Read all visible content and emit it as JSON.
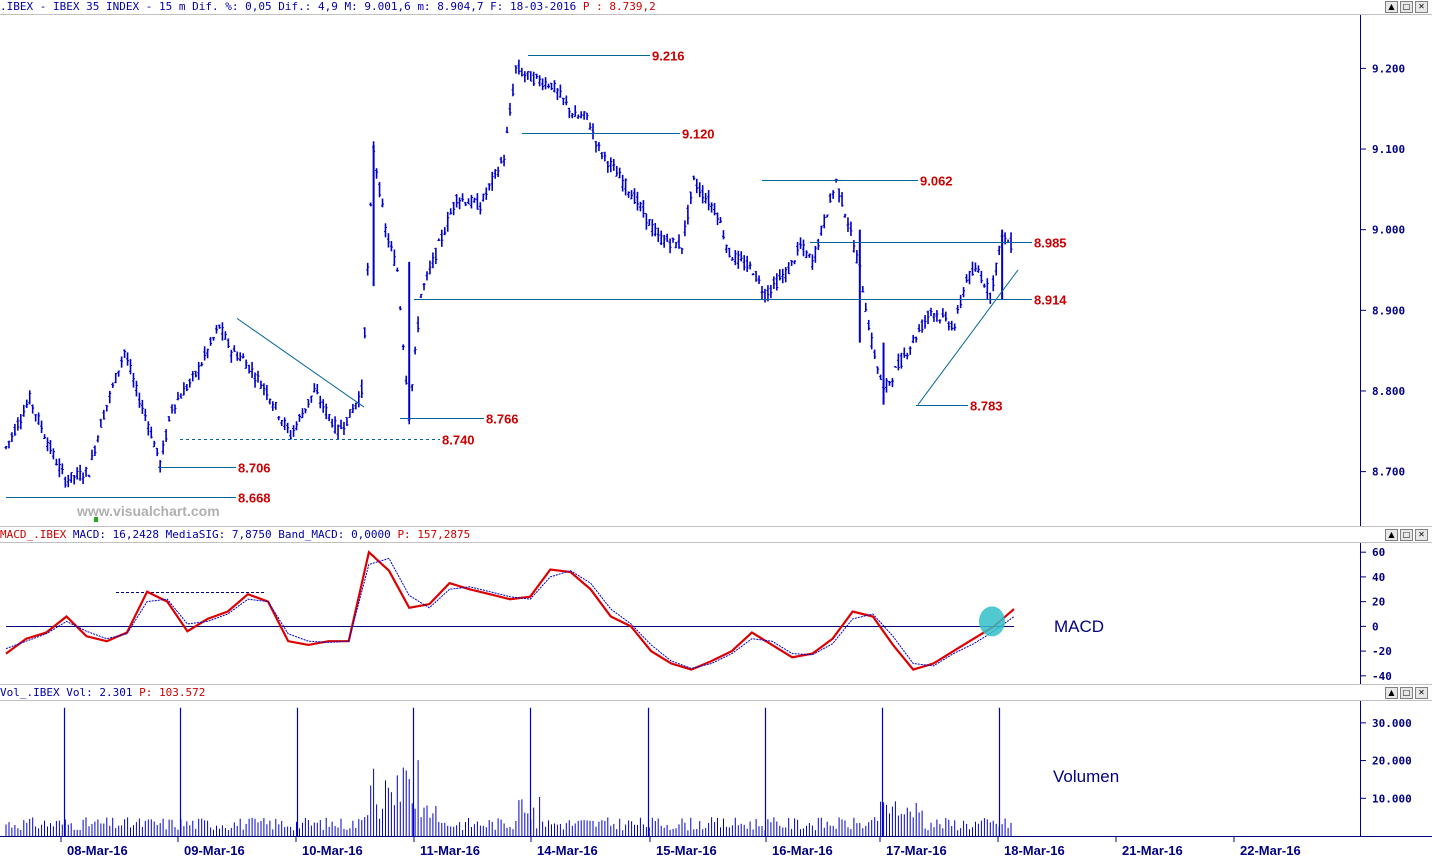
{
  "price_header": {
    "symbol": ".IBEX",
    "name": "IBEX 35 INDEX",
    "interval": "15 m",
    "dif_pct_label": "Dif. %:",
    "dif_pct": "0,05",
    "dif_label": "Dif.:",
    "dif": "4,9",
    "max_label": "M:",
    "max": "9.001,6",
    "min_label": "m:",
    "min": "8.904,7",
    "date_label": "F:",
    "date": "18-03-2016",
    "price_label": "P :",
    "price": "8.739,2"
  },
  "macd_header": {
    "prefix": "MACD_.IBEX",
    "macd_label": "MACD:",
    "macd": "16,2428",
    "signal_label": "MediaSIG:",
    "signal": "7,8750",
    "band_label": "Band_MACD:",
    "band": "0,0000",
    "price_label": "P:",
    "price": "157,2875"
  },
  "vol_header": {
    "prefix": "Vol_.IBEX",
    "vol_label": "Vol:",
    "vol": "2.301",
    "price_label": "P:",
    "price": "103.572"
  },
  "watermark": "www.visualchart.com",
  "macd_label": "MACD",
  "volume_label": "Volumen",
  "window_buttons": [
    "▲",
    "□",
    "✕"
  ],
  "colors": {
    "price": "#0000cc",
    "level_line": "#006699",
    "level_label": "#cc0000",
    "macd": "#dd0000",
    "signal": "#0000cc",
    "highlight": "#33c0c8"
  },
  "chart_data": [
    {
      "type": "candlestick",
      "title": "IBEX 35 INDEX",
      "x_labels": [
        "08-Mar-16",
        "09-Mar-16",
        "10-Mar-16",
        "11-Mar-16",
        "14-Mar-16",
        "15-Mar-16",
        "16-Mar-16",
        "17-Mar-16",
        "18-Mar-16",
        "21-Mar-16",
        "22-Mar-16"
      ],
      "y_ticks": [
        "8.700",
        "8.800",
        "8.900",
        "9.000",
        "9.100",
        "9.200"
      ],
      "ylim": [
        8640,
        9260
      ],
      "levels": [
        "9.216",
        "9.120",
        "9.062",
        "8.985",
        "8.914",
        "8.783",
        "8.766",
        "8.740",
        "8.706",
        "8.668"
      ],
      "path_points": [
        [
          0,
          8730
        ],
        [
          2,
          8790
        ],
        [
          4,
          8720
        ],
        [
          5,
          8690
        ],
        [
          7,
          8700
        ],
        [
          8,
          8760
        ],
        [
          10,
          8850
        ],
        [
          11,
          8800
        ],
        [
          12,
          8760
        ],
        [
          13,
          8710
        ],
        [
          14,
          8780
        ],
        [
          16,
          8820
        ],
        [
          18,
          8880
        ],
        [
          19,
          8850
        ],
        [
          20,
          8840
        ],
        [
          22,
          8800
        ],
        [
          24,
          8745
        ],
        [
          26,
          8800
        ],
        [
          28,
          8750
        ],
        [
          29,
          8770
        ],
        [
          30,
          8800
        ],
        [
          31,
          9100
        ],
        [
          32,
          9000
        ],
        [
          33,
          8950
        ],
        [
          34,
          8770
        ],
        [
          35,
          8920
        ],
        [
          36,
          8960
        ],
        [
          38,
          9040
        ],
        [
          40,
          9030
        ],
        [
          41,
          9060
        ],
        [
          42,
          9090
        ],
        [
          43,
          9200
        ],
        [
          44,
          9190
        ],
        [
          46,
          9180
        ],
        [
          48,
          9140
        ],
        [
          49,
          9140
        ],
        [
          50,
          9100
        ],
        [
          51,
          9080
        ],
        [
          53,
          9040
        ],
        [
          55,
          8990
        ],
        [
          57,
          8980
        ],
        [
          58,
          9060
        ],
        [
          60,
          9020
        ],
        [
          61,
          8970
        ],
        [
          63,
          8950
        ],
        [
          64,
          8920
        ],
        [
          66,
          8950
        ],
        [
          67,
          8980
        ],
        [
          68,
          8960
        ],
        [
          70,
          9060
        ],
        [
          71,
          9010
        ],
        [
          72,
          8950
        ],
        [
          73,
          8860
        ],
        [
          74,
          8800
        ],
        [
          76,
          8850
        ],
        [
          78,
          8900
        ],
        [
          80,
          8880
        ],
        [
          81,
          8940
        ],
        [
          82,
          8950
        ],
        [
          83,
          8920
        ],
        [
          84,
          8990
        ],
        [
          85,
          8980
        ]
      ],
      "ytitle": ""
    },
    {
      "type": "line",
      "title": "MACD",
      "y_ticks": [
        "60",
        "40",
        "20",
        "0",
        "-20",
        "-40"
      ],
      "ylim": [
        -45,
        65
      ],
      "series": [
        {
          "name": "MACD",
          "values": [
            -22,
            -10,
            -5,
            8,
            -8,
            -12,
            -5,
            28,
            20,
            -4,
            6,
            12,
            26,
            20,
            -12,
            -15,
            -12,
            -12,
            60,
            45,
            15,
            18,
            35,
            30,
            26,
            22,
            24,
            46,
            44,
            30,
            8,
            0,
            -20,
            -30,
            -35,
            -28,
            -20,
            -5,
            -15,
            -25,
            -22,
            -10,
            12,
            8,
            -15,
            -35,
            -30,
            -20,
            -10,
            0,
            14
          ]
        },
        {
          "name": "MediaSIG",
          "values": [
            -18,
            -12,
            -6,
            4,
            -4,
            -10,
            -6,
            20,
            22,
            2,
            4,
            10,
            22,
            20,
            -6,
            -12,
            -13,
            -12,
            50,
            55,
            25,
            15,
            30,
            32,
            28,
            24,
            22,
            40,
            45,
            35,
            14,
            2,
            -15,
            -28,
            -34,
            -30,
            -22,
            -10,
            -12,
            -22,
            -23,
            -14,
            6,
            10,
            -8,
            -30,
            -32,
            -22,
            -14,
            -4,
            8
          ]
        }
      ]
    },
    {
      "type": "bar",
      "title": "Volumen",
      "y_ticks": [
        "10.000",
        "20.000",
        "30.000"
      ],
      "ylim": [
        0,
        35000
      ],
      "spikes": [
        {
          "index": 0,
          "value": 34000
        },
        {
          "index": 1,
          "value": 34000
        },
        {
          "index": 2,
          "value": 34000
        },
        {
          "index": 3,
          "value": 34000
        },
        {
          "index": 4,
          "value": 34000
        },
        {
          "index": 5,
          "value": 34000
        },
        {
          "index": 6,
          "value": 34000
        },
        {
          "index": 7,
          "value": 34000
        },
        {
          "index": 8,
          "value": 34000
        }
      ]
    }
  ]
}
